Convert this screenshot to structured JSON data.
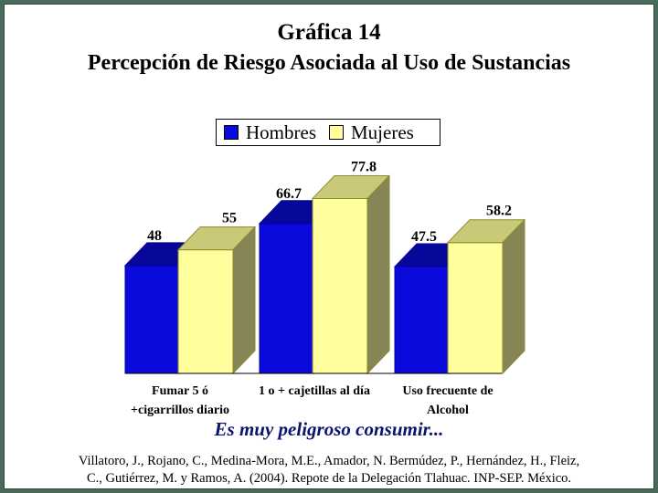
{
  "title": {
    "line1": "Gráfica 14",
    "line2": "Percepción de Riesgo Asociada al Uso de Sustancias"
  },
  "subtitle": "Es muy peligroso consumir...",
  "citation": {
    "line1": "Villatoro, J., Rojano, C., Medina-Mora, M.E., Amador, N. Bermúdez, P., Hernández, H., Fleiz,",
    "line2": "C., Gutiérrez, M. y Ramos, A. (2004). Repote de la Delegación Tlahuac. INP-SEP. México."
  },
  "colors": {
    "hombres_front": "#0a0adc",
    "hombres_top": "#07079a",
    "hombres_side": "#050570",
    "mujeres_front": "#ffff9e",
    "mujeres_top": "#c9c978",
    "mujeres_side": "#858555",
    "frame": "#4a6b5a",
    "subtitle": "#0a1470"
  },
  "chart_data": {
    "type": "bar",
    "style": "3d-clustered",
    "categories": [
      [
        "Fumar 5 ó",
        "+cigarrillos diario"
      ],
      [
        "1 o + cajetillas al día"
      ],
      [
        "Uso frecuente de",
        "Alcohol"
      ]
    ],
    "series": [
      {
        "name": "Hombres",
        "values": [
          48,
          66.7,
          47.5
        ]
      },
      {
        "name": "Mujeres",
        "values": [
          55,
          77.8,
          58.2
        ]
      }
    ],
    "data_labels": [
      [
        "48",
        "66.7",
        "47.5"
      ],
      [
        "55",
        "77.8",
        "58.2"
      ]
    ],
    "ylim": [
      0,
      100
    ],
    "grid": false,
    "legend": "top-center"
  }
}
